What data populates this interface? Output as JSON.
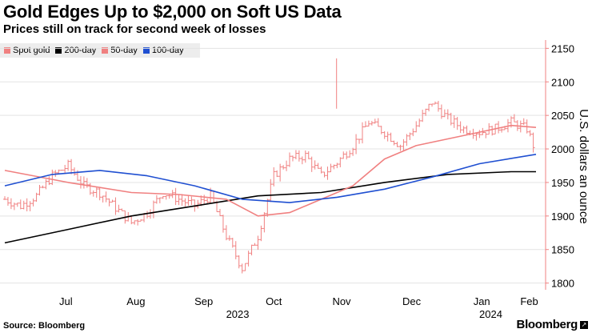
{
  "title": "Gold Edges Up to $2,000 on Soft US Data",
  "subtitle": "Prices still on track for second week of losses",
  "legend": [
    {
      "label": "Spot gold",
      "color": "#f08080"
    },
    {
      "label": "200-day",
      "color": "#000000"
    },
    {
      "label": "50-day",
      "color": "#f08080"
    },
    {
      "label": "100-day",
      "color": "#1f4fd1"
    }
  ],
  "source": "Source: Bloomberg",
  "brand": "Bloomberg",
  "chart_data": {
    "type": "line",
    "ylabel": "U.S. dollars an ounce",
    "ylim": [
      1790,
      2160
    ],
    "yticks": [
      1800,
      1850,
      1900,
      1950,
      2000,
      2050,
      2100,
      2150
    ],
    "month_labels": [
      "Jul",
      "Aug",
      "Sep",
      "Oct",
      "Nov",
      "Dec",
      "Jan",
      "Feb"
    ],
    "year_labels": [
      "2023",
      "2024"
    ],
    "x_start": "2023-06-19",
    "x_end": "2024-02-09",
    "grid": true,
    "legend_position": "top-left",
    "series": [
      {
        "name": "Spot gold",
        "style": "ohlc",
        "color": "#f08080",
        "x": [
          "2023-06-19",
          "2023-06-26",
          "2023-07-03",
          "2023-07-10",
          "2023-07-17",
          "2023-07-24",
          "2023-07-31",
          "2023-08-07",
          "2023-08-14",
          "2023-08-21",
          "2023-08-28",
          "2023-09-04",
          "2023-09-11",
          "2023-09-18",
          "2023-09-25",
          "2023-10-02",
          "2023-10-09",
          "2023-10-16",
          "2023-10-23",
          "2023-10-30",
          "2023-11-06",
          "2023-11-13",
          "2023-11-20",
          "2023-11-27",
          "2023-12-04",
          "2023-12-11",
          "2023-12-18",
          "2023-12-25",
          "2024-01-01",
          "2024-01-08",
          "2024-01-15",
          "2024-01-22",
          "2024-01-29",
          "2024-02-05",
          "2024-02-09"
        ],
        "values": [
          1925,
          1915,
          1930,
          1960,
          1975,
          1945,
          1935,
          1912,
          1890,
          1905,
          1935,
          1925,
          1915,
          1930,
          1870,
          1822,
          1870,
          1960,
          1985,
          1990,
          1960,
          1980,
          2005,
          2040,
          2025,
          2005,
          2035,
          2070,
          2045,
          2030,
          2025,
          2030,
          2040,
          2030,
          1995
        ]
      },
      {
        "name": "200-day",
        "style": "line",
        "color": "#000000",
        "x": [
          "2023-06-19",
          "2023-07-17",
          "2023-08-14",
          "2023-09-11",
          "2023-10-09",
          "2023-11-06",
          "2023-12-04",
          "2024-01-01",
          "2024-01-29",
          "2024-02-09"
        ],
        "values": [
          1860,
          1880,
          1900,
          1915,
          1930,
          1935,
          1950,
          1962,
          1966,
          1966
        ]
      },
      {
        "name": "50-day",
        "style": "line",
        "color": "#f08080",
        "x": [
          "2023-06-19",
          "2023-07-17",
          "2023-08-14",
          "2023-09-04",
          "2023-09-25",
          "2023-10-09",
          "2023-10-23",
          "2023-11-06",
          "2023-11-20",
          "2023-12-04",
          "2023-12-18",
          "2024-01-01",
          "2024-01-15",
          "2024-01-29",
          "2024-02-09"
        ],
        "values": [
          1968,
          1950,
          1935,
          1932,
          1925,
          1900,
          1905,
          1925,
          1945,
          1985,
          2005,
          2015,
          2025,
          2035,
          2032
        ]
      },
      {
        "name": "100-day",
        "style": "line",
        "color": "#1f4fd1",
        "x": [
          "2023-06-19",
          "2023-07-10",
          "2023-07-31",
          "2023-08-21",
          "2023-09-11",
          "2023-10-02",
          "2023-10-23",
          "2023-11-13",
          "2023-12-04",
          "2023-12-25",
          "2024-01-15",
          "2024-02-09"
        ],
        "values": [
          1945,
          1962,
          1968,
          1960,
          1945,
          1925,
          1920,
          1928,
          1940,
          1958,
          1978,
          1992
        ]
      }
    ]
  }
}
